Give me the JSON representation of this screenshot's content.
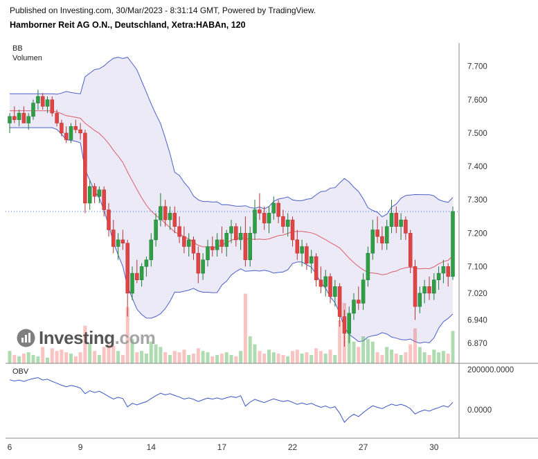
{
  "header": {
    "published_line": "Published on Investing.com, 30/Mar/2023 - 8:31:14 GMT, Powered by TradingView.",
    "instrument_line": "Hamborner Reit AG O.N., Deutschland, Xetra:HABAn, 120"
  },
  "indicators": {
    "bb_label": "BB",
    "volume_label": "Volumen",
    "obv_label": "OBV"
  },
  "watermark": {
    "text_main": "Investing",
    "text_suffix": ".com"
  },
  "colors": {
    "candle_up": "#2f9e44",
    "candle_up_border": "#1d7a33",
    "candle_down": "#e04444",
    "candle_down_border": "#b53030",
    "volume_up": "rgba(76,175,80,0.45)",
    "volume_down": "rgba(239,83,80,0.35)",
    "bb_fill": "rgba(103,93,187,0.13)",
    "bb_line": "#4b5fc9",
    "bb_mid": "#e05c6a",
    "obv_line": "#3b55c4",
    "last_price_line": "#2a6af0",
    "axis": "#8a8a8a",
    "axis_text": "#333333"
  },
  "chart_data": {
    "type": "candlestick",
    "title": "Hamborner Reit AG O.N., Deutschland, Xetra:HABAn, 120",
    "timeframe_minutes": 120,
    "x_tick_labels": [
      "6",
      "9",
      "14",
      "17",
      "22",
      "27",
      "30"
    ],
    "x_tick_bar_index": [
      0,
      15,
      30,
      45,
      60,
      75,
      90
    ],
    "price_axis_ticks": [
      {
        "label": "7.700",
        "value": 7.7
      },
      {
        "label": "7.600",
        "value": 7.6
      },
      {
        "label": "7.500",
        "value": 7.5
      },
      {
        "label": "7.400",
        "value": 7.4
      },
      {
        "label": "7.300",
        "value": 7.3
      },
      {
        "label": "7.200",
        "value": 7.2
      },
      {
        "label": "7.100",
        "value": 7.1
      },
      {
        "label": "7.020",
        "value": 7.02
      },
      {
        "label": "6.940",
        "value": 6.94
      },
      {
        "label": "6.870",
        "value": 6.87
      }
    ],
    "price_range": [
      6.81,
      7.77
    ],
    "obv_axis_ticks": [
      {
        "label": "200000.0000",
        "value": 200000
      },
      {
        "label": "0.0000",
        "value": 0
      }
    ],
    "obv_start": 140000,
    "last_price": 7.265,
    "bollinger": {
      "window": 20,
      "mult": 2
    },
    "volume_max": 52000,
    "candles": [
      [
        7.53,
        7.56,
        7.5,
        7.55,
        9000
      ],
      [
        7.55,
        7.58,
        7.53,
        7.54,
        6000
      ],
      [
        7.54,
        7.57,
        7.52,
        7.56,
        5000
      ],
      [
        7.56,
        7.58,
        7.54,
        7.53,
        7000
      ],
      [
        7.53,
        7.56,
        7.51,
        7.55,
        8000
      ],
      [
        7.55,
        7.6,
        7.54,
        7.59,
        6000
      ],
      [
        7.59,
        7.63,
        7.57,
        7.61,
        5000
      ],
      [
        7.61,
        7.62,
        7.57,
        7.58,
        12000
      ],
      [
        7.58,
        7.61,
        7.56,
        7.6,
        4000
      ],
      [
        7.6,
        7.61,
        7.55,
        7.56,
        11000
      ],
      [
        7.56,
        7.57,
        7.52,
        7.53,
        9000
      ],
      [
        7.53,
        7.54,
        7.49,
        7.5,
        10000
      ],
      [
        7.5,
        7.52,
        7.47,
        7.48,
        8000
      ],
      [
        7.48,
        7.53,
        7.47,
        7.52,
        7000
      ],
      [
        7.52,
        7.54,
        7.5,
        7.51,
        5000
      ],
      [
        7.51,
        7.53,
        7.48,
        7.5,
        8000
      ],
      [
        7.5,
        7.51,
        7.26,
        7.29,
        28000
      ],
      [
        7.29,
        7.36,
        7.27,
        7.34,
        15000
      ],
      [
        7.34,
        7.35,
        7.29,
        7.31,
        9000
      ],
      [
        7.31,
        7.34,
        7.29,
        7.33,
        6000
      ],
      [
        7.33,
        7.34,
        7.25,
        7.27,
        12000
      ],
      [
        7.27,
        7.29,
        7.19,
        7.21,
        14000
      ],
      [
        7.21,
        7.24,
        7.14,
        7.16,
        13000
      ],
      [
        7.16,
        7.2,
        7.12,
        7.18,
        9000
      ],
      [
        7.18,
        7.21,
        7.15,
        7.17,
        6000
      ],
      [
        7.17,
        7.18,
        6.95,
        7.02,
        42000
      ],
      [
        7.02,
        7.1,
        7.0,
        7.08,
        18000
      ],
      [
        7.08,
        7.12,
        7.05,
        7.06,
        8000
      ],
      [
        7.06,
        7.11,
        7.04,
        7.1,
        9000
      ],
      [
        7.1,
        7.13,
        7.07,
        7.12,
        7000
      ],
      [
        7.12,
        7.2,
        7.1,
        7.18,
        16000
      ],
      [
        7.18,
        7.26,
        7.16,
        7.24,
        14000
      ],
      [
        7.24,
        7.32,
        7.22,
        7.28,
        12000
      ],
      [
        7.28,
        7.3,
        7.22,
        7.24,
        8000
      ],
      [
        7.24,
        7.28,
        7.21,
        7.26,
        6000
      ],
      [
        7.26,
        7.28,
        7.2,
        7.22,
        9000
      ],
      [
        7.22,
        7.25,
        7.17,
        7.19,
        8000
      ],
      [
        7.19,
        7.22,
        7.14,
        7.16,
        10000
      ],
      [
        7.16,
        7.2,
        7.13,
        7.18,
        6000
      ],
      [
        7.18,
        7.19,
        7.12,
        7.14,
        7000
      ],
      [
        7.14,
        7.16,
        7.05,
        7.08,
        11000
      ],
      [
        7.08,
        7.14,
        7.06,
        7.12,
        9000
      ],
      [
        7.12,
        7.18,
        7.1,
        7.16,
        8000
      ],
      [
        7.16,
        7.19,
        7.13,
        7.15,
        5000
      ],
      [
        7.15,
        7.2,
        7.13,
        7.18,
        6000
      ],
      [
        7.18,
        7.22,
        7.14,
        7.16,
        7000
      ],
      [
        7.16,
        7.21,
        7.13,
        7.2,
        8000
      ],
      [
        7.2,
        7.24,
        7.17,
        7.22,
        6000
      ],
      [
        7.22,
        7.23,
        7.16,
        7.18,
        5000
      ],
      [
        7.18,
        7.22,
        7.15,
        7.2,
        9000
      ],
      [
        7.2,
        7.25,
        7.1,
        7.12,
        52000
      ],
      [
        7.12,
        7.22,
        7.1,
        7.2,
        20000
      ],
      [
        7.2,
        7.3,
        7.18,
        7.27,
        14000
      ],
      [
        7.27,
        7.32,
        7.24,
        7.26,
        9000
      ],
      [
        7.26,
        7.28,
        7.21,
        7.23,
        7000
      ],
      [
        7.23,
        7.28,
        7.2,
        7.26,
        10000
      ],
      [
        7.26,
        7.31,
        7.24,
        7.29,
        8000
      ],
      [
        7.29,
        7.3,
        7.23,
        7.25,
        7000
      ],
      [
        7.25,
        7.27,
        7.2,
        7.22,
        6000
      ],
      [
        7.22,
        7.26,
        7.19,
        7.24,
        5000
      ],
      [
        7.24,
        7.25,
        7.16,
        7.18,
        9000
      ],
      [
        7.18,
        7.21,
        7.12,
        7.14,
        10000
      ],
      [
        7.14,
        7.18,
        7.1,
        7.16,
        7000
      ],
      [
        7.16,
        7.17,
        7.09,
        7.11,
        8000
      ],
      [
        7.11,
        7.15,
        7.08,
        7.13,
        6000
      ],
      [
        7.13,
        7.14,
        7.04,
        7.06,
        11000
      ],
      [
        7.06,
        7.1,
        7.02,
        7.04,
        9000
      ],
      [
        7.04,
        7.09,
        7.01,
        7.07,
        7000
      ],
      [
        7.07,
        7.08,
        6.99,
        7.01,
        10000
      ],
      [
        7.01,
        7.06,
        6.98,
        7.04,
        6000
      ],
      [
        7.04,
        7.05,
        6.92,
        6.95,
        32000
      ],
      [
        6.95,
        6.97,
        6.86,
        6.9,
        45000
      ],
      [
        6.9,
        6.98,
        6.87,
        6.96,
        24000
      ],
      [
        6.96,
        7.02,
        6.94,
        7.0,
        16000
      ],
      [
        7.0,
        7.04,
        6.97,
        6.99,
        12000
      ],
      [
        6.99,
        7.08,
        6.97,
        7.06,
        20000
      ],
      [
        7.06,
        7.16,
        7.04,
        7.14,
        18000
      ],
      [
        7.14,
        7.24,
        7.12,
        7.21,
        16000
      ],
      [
        7.21,
        7.25,
        7.17,
        7.19,
        8000
      ],
      [
        7.19,
        7.22,
        7.15,
        7.17,
        6000
      ],
      [
        7.17,
        7.24,
        7.15,
        7.22,
        12000
      ],
      [
        7.22,
        7.3,
        7.2,
        7.26,
        10000
      ],
      [
        7.26,
        7.28,
        7.2,
        7.22,
        7000
      ],
      [
        7.22,
        7.26,
        7.18,
        7.24,
        6000
      ],
      [
        7.24,
        7.25,
        7.18,
        7.2,
        8000
      ],
      [
        7.2,
        7.21,
        7.08,
        7.1,
        14000
      ],
      [
        7.1,
        7.12,
        6.94,
        6.98,
        26000
      ],
      [
        6.98,
        7.04,
        6.96,
        7.02,
        12000
      ],
      [
        7.02,
        7.06,
        6.99,
        7.04,
        8000
      ],
      [
        7.04,
        7.07,
        7.0,
        7.02,
        6000
      ],
      [
        7.02,
        7.08,
        7.0,
        7.06,
        10000
      ],
      [
        7.06,
        7.1,
        7.03,
        7.08,
        8000
      ],
      [
        7.08,
        7.12,
        7.05,
        7.1,
        9000
      ],
      [
        7.1,
        7.11,
        7.04,
        7.07,
        7000
      ],
      [
        7.07,
        7.28,
        7.06,
        7.265,
        24000
      ]
    ]
  }
}
